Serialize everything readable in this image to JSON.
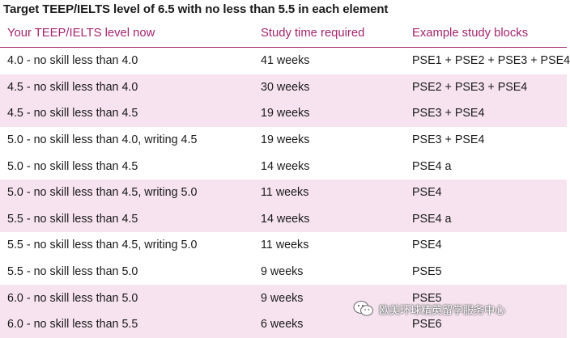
{
  "title": "Target TEEP/IELTS level of 6.5 with no less than 5.5 in each element",
  "headers": [
    "Your TEEP/IELTS level now",
    "Study time required",
    "Example study blocks"
  ],
  "rows": [
    [
      "4.0 - no skill less than 4.0",
      "41 weeks",
      "PSE1 + PSE2 + PSE3 + PSE4"
    ],
    [
      "4.5 - no skill less than 4.0",
      "30 weeks",
      "PSE2 + PSE3 + PSE4"
    ],
    [
      "4.5 - no skill less than 4.5",
      "19 weeks",
      "PSE3 + PSE4"
    ],
    [
      "5.0 - no skill less than 4.0, writing 4.5",
      "19 weeks",
      "PSE3 + PSE4"
    ],
    [
      "5.0 - no skill less than 4.5",
      "14 weeks",
      "PSE4 a"
    ],
    [
      "5.0 - no skill less than 4.5, writing 5.0",
      "11 weeks",
      "PSE4"
    ],
    [
      "5.5 - no skill less than 4.5",
      "14 weeks",
      "PSE4 a"
    ],
    [
      "5.5 - no skill less than 4.5, writing 5.0",
      "11 weeks",
      "PSE4"
    ],
    [
      "5.5 - no skill less than 5.0",
      "9 weeks",
      "PSE5"
    ],
    [
      "6.0 - no skill less than 5.0",
      "9 weeks",
      "PSE5"
    ],
    [
      "6.0 - no skill less than 5.5",
      "6 weeks",
      "PSE6"
    ]
  ],
  "shaded_rows": [
    1,
    2,
    5,
    6,
    9,
    10
  ],
  "colors": {
    "accent": "#a3246e",
    "shade": "#f6e3ef",
    "text": "#1a1a1a"
  },
  "watermark": {
    "icon": "wechat-icon",
    "text": "欧美环球精英留学服务中心"
  }
}
